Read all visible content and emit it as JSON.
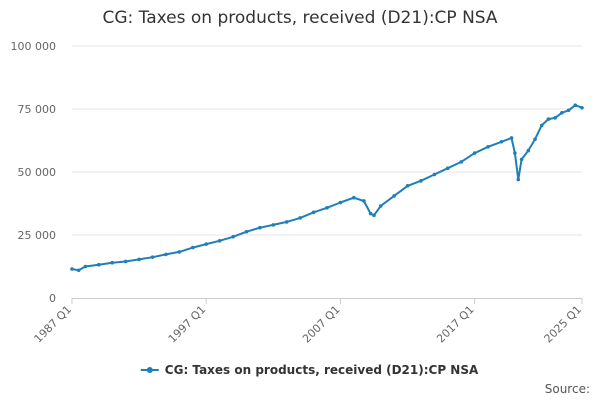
{
  "chart_data": {
    "type": "line",
    "title": "CG: Taxes on products, received (D21):CP NSA",
    "source_label": "Source:",
    "xlabel": "",
    "ylabel": "",
    "x_ticks": [
      "1987 Q1",
      "1997 Q1",
      "2007 Q1",
      "2017 Q1",
      "2025 Q1"
    ],
    "y_ticks": [
      "0",
      "25 000",
      "50 000",
      "75 000",
      "100 000"
    ],
    "y_tick_values": [
      0,
      25000,
      50000,
      75000,
      100000
    ],
    "ylim": [
      0,
      100000
    ],
    "x_range_years": [
      1987.0,
      2025.0
    ],
    "grid": true,
    "legend": "bottom-center",
    "colors": {
      "series": "#1f7fb8",
      "grid": "#e6e6e6",
      "axis": "#cccccc",
      "text": "#666666"
    },
    "series": [
      {
        "name": "CG: Taxes on products, received (D21):CP NSA",
        "points": [
          [
            1987.0,
            11500
          ],
          [
            1987.5,
            11000
          ],
          [
            1988.0,
            12500
          ],
          [
            1989.0,
            13200
          ],
          [
            1990.0,
            14000
          ],
          [
            1991.0,
            14500
          ],
          [
            1992.0,
            15300
          ],
          [
            1993.0,
            16200
          ],
          [
            1994.0,
            17300
          ],
          [
            1995.0,
            18300
          ],
          [
            1996.0,
            20000
          ],
          [
            1997.0,
            21400
          ],
          [
            1998.0,
            22700
          ],
          [
            1999.0,
            24300
          ],
          [
            2000.0,
            26300
          ],
          [
            2001.0,
            27900
          ],
          [
            2002.0,
            29000
          ],
          [
            2003.0,
            30200
          ],
          [
            2004.0,
            31800
          ],
          [
            2005.0,
            34000
          ],
          [
            2006.0,
            35800
          ],
          [
            2007.0,
            37900
          ],
          [
            2008.0,
            39800
          ],
          [
            2008.75,
            38500
          ],
          [
            2009.25,
            33500
          ],
          [
            2009.5,
            32800
          ],
          [
            2010.0,
            36500
          ],
          [
            2011.0,
            40500
          ],
          [
            2012.0,
            44500
          ],
          [
            2013.0,
            46500
          ],
          [
            2014.0,
            49000
          ],
          [
            2015.0,
            51500
          ],
          [
            2016.0,
            54000
          ],
          [
            2017.0,
            57500
          ],
          [
            2018.0,
            60000
          ],
          [
            2019.0,
            62000
          ],
          [
            2019.75,
            63500
          ],
          [
            2020.0,
            57500
          ],
          [
            2020.25,
            47000
          ],
          [
            2020.5,
            55000
          ],
          [
            2021.0,
            58500
          ],
          [
            2021.5,
            63000
          ],
          [
            2022.0,
            68500
          ],
          [
            2022.5,
            71000
          ],
          [
            2023.0,
            71500
          ],
          [
            2023.5,
            73500
          ],
          [
            2024.0,
            74500
          ],
          [
            2024.5,
            76500
          ],
          [
            2025.0,
            75500
          ]
        ]
      }
    ]
  }
}
